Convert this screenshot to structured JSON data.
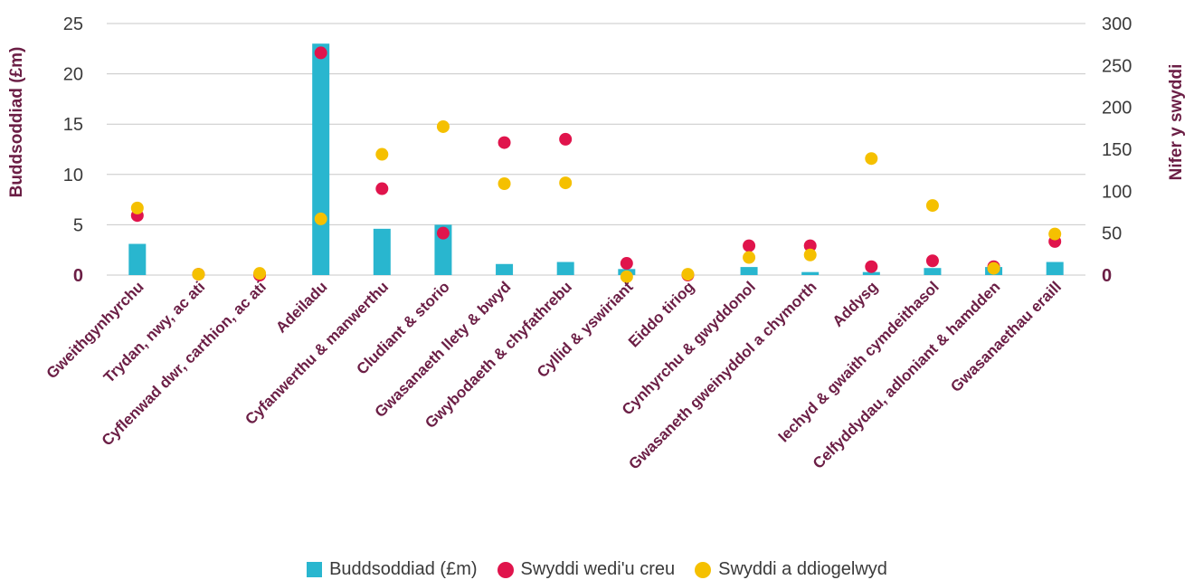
{
  "chart_data": {
    "type": "bar",
    "categories": [
      "Gweithgynhyrchu",
      "Trydan, nwy, ac ati",
      "Cyflenwad dwr, carthion, ac ati",
      "Adeiladu",
      "Cyfanwerthu & manwerthu",
      "Cludiant & storio",
      "Gwasanaeth llety & bwyd",
      "Gwybodaeth & chyfathrebu",
      "Cyllid & yswiriant",
      "Eiddo tiriog",
      "Cynhyrchu & gwyddonol",
      "Gwasaneth gweinyddol a chymorth",
      "Addysg",
      "Iechyd & gwaith cymdeithasol",
      "Celfyddydau, adloniant & hamdden",
      "Gwasanaethau eraill"
    ],
    "series": [
      {
        "name": "Buddsoddiad (£m)",
        "type": "bar",
        "axis": "left",
        "color": "#29b6cf",
        "values": [
          3.1,
          0,
          0,
          23,
          4.6,
          5.0,
          1.1,
          1.3,
          0.6,
          0,
          0.8,
          0.3,
          0.3,
          0.7,
          0.8,
          1.3
        ]
      },
      {
        "name": "Swyddi wedi'u creu",
        "type": "scatter",
        "axis": "right",
        "color": "#e0144c",
        "values": [
          71,
          1,
          0,
          265,
          103,
          50,
          158,
          162,
          14,
          0,
          35,
          35,
          10,
          17,
          10,
          40
        ]
      },
      {
        "name": "Swyddi a ddiogelwyd",
        "type": "scatter",
        "axis": "right",
        "color": "#f5c000",
        "values": [
          80,
          1,
          2,
          67,
          144,
          177,
          109,
          110,
          -2,
          1,
          21,
          24,
          139,
          83,
          8,
          49
        ]
      }
    ],
    "ylabel": "Buddsoddiad (£m)",
    "y2label": "Nifer y swyddi",
    "ylim": [
      0,
      25
    ],
    "y2lim": [
      0,
      300
    ],
    "yticks": [
      0,
      5,
      10,
      15,
      20,
      25
    ],
    "y2ticks": [
      0,
      50,
      100,
      150,
      200,
      250,
      300
    ],
    "grid": true,
    "legend_position": "bottom"
  },
  "legend": [
    {
      "label": "Buddsoddiad (£m)",
      "color": "#29b6cf",
      "shape": "square"
    },
    {
      "label": "Swyddi wedi'u creu",
      "color": "#e0144c",
      "shape": "circle"
    },
    {
      "label": "Swyddi a ddiogelwyd",
      "color": "#f5c000",
      "shape": "circle"
    }
  ]
}
